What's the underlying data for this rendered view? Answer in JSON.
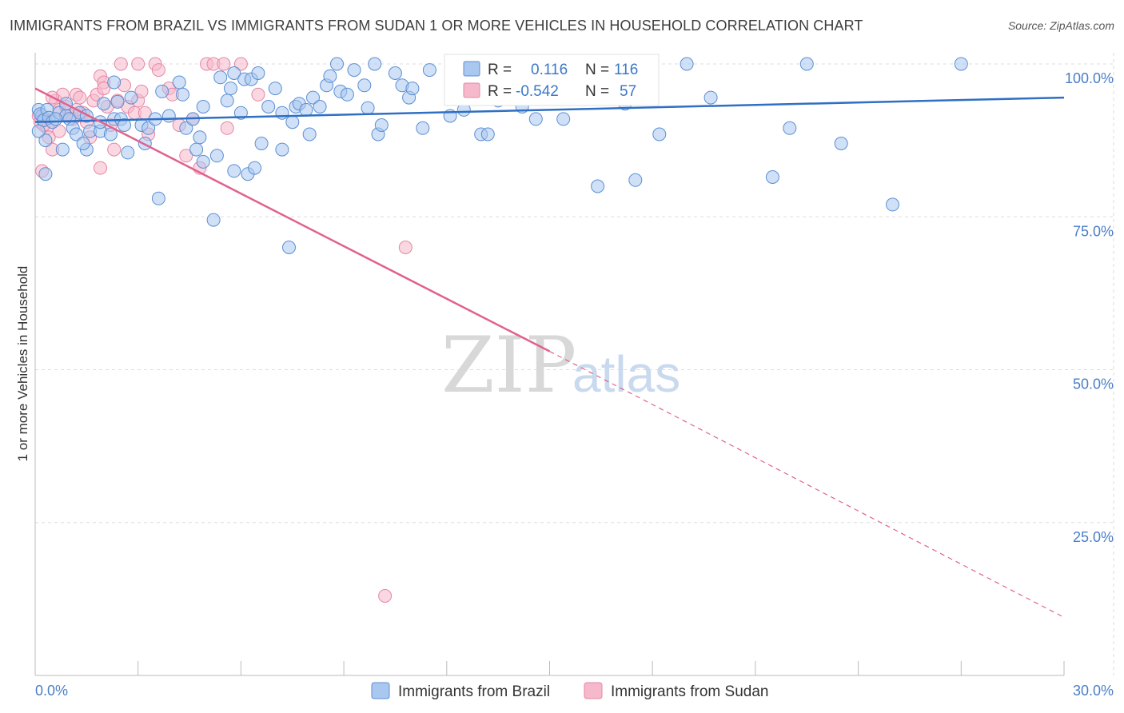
{
  "header": {
    "title": "IMMIGRANTS FROM BRAZIL VS IMMIGRANTS FROM SUDAN 1 OR MORE VEHICLES IN HOUSEHOLD CORRELATION CHART",
    "source": "Source: ZipAtlas.com"
  },
  "watermark": {
    "zip": "ZIP",
    "atlas": "atlas"
  },
  "legend": {
    "brazil": {
      "r_label": "R =",
      "r_value": "0.116",
      "n_label": "N =",
      "n_value": "116"
    },
    "sudan": {
      "r_label": "R =",
      "r_value": "-0.542",
      "n_label": "N =",
      "n_value": "57"
    }
  },
  "bottom_legend": {
    "brazil": "Immigrants from Brazil",
    "sudan": "Immigrants from Sudan"
  },
  "colors": {
    "brazil_fill": "#a9c7ef",
    "brazil_stroke": "#5b8fd4",
    "brazil_line": "#2f6fc4",
    "sudan_fill": "#f6b8cb",
    "sudan_stroke": "#e687a6",
    "sudan_line": "#e0628f",
    "grid": "#dddddd",
    "tick_text": "#4a7ec8"
  },
  "chart_data": {
    "type": "scatter",
    "title": "IMMIGRANTS FROM BRAZIL VS IMMIGRANTS FROM SUDAN 1 OR MORE VEHICLES IN HOUSEHOLD CORRELATION CHART",
    "xlabel": "",
    "ylabel": "1 or more Vehicles in Household",
    "xlim": [
      0,
      30
    ],
    "ylim": [
      0,
      105
    ],
    "x_tick_labels": [
      "0.0%",
      "30.0%"
    ],
    "y_ticks": [
      25,
      50,
      75,
      100
    ],
    "y_tick_labels": [
      "25.0%",
      "50.0%",
      "75.0%",
      "100.0%"
    ],
    "grid": true,
    "legend_position": "top-center",
    "series": [
      {
        "name": "Immigrants from Brazil",
        "points": [
          [
            0.1,
            92.5
          ],
          [
            0.2,
            91.5
          ],
          [
            0.15,
            91.8
          ],
          [
            0.25,
            90.8
          ],
          [
            0.3,
            87.5
          ],
          [
            0.35,
            92.5
          ],
          [
            0.4,
            91.2
          ],
          [
            0.5,
            90.5
          ],
          [
            0.7,
            92.0
          ],
          [
            0.9,
            91.5
          ],
          [
            0.8,
            86.0
          ],
          [
            1.0,
            91.0
          ],
          [
            1.1,
            89.5
          ],
          [
            1.3,
            92.0
          ],
          [
            1.2,
            88.5
          ],
          [
            1.5,
            91.5
          ],
          [
            1.6,
            89.0
          ],
          [
            1.5,
            86.0
          ],
          [
            1.9,
            89.0
          ],
          [
            2.0,
            93.5
          ],
          [
            2.2,
            88.5
          ],
          [
            2.3,
            91.0
          ],
          [
            2.5,
            91.0
          ],
          [
            2.6,
            90.0
          ],
          [
            2.7,
            85.5
          ],
          [
            2.8,
            94.5
          ],
          [
            3.1,
            90.0
          ],
          [
            3.3,
            89.5
          ],
          [
            3.5,
            91.0
          ],
          [
            3.6,
            78.0
          ],
          [
            3.7,
            95.5
          ],
          [
            4.2,
            97.0
          ],
          [
            4.3,
            95.0
          ],
          [
            4.4,
            89.5
          ],
          [
            4.6,
            91.0
          ],
          [
            4.8,
            88.0
          ],
          [
            4.9,
            93.0
          ],
          [
            4.9,
            84.0
          ],
          [
            5.2,
            74.5
          ],
          [
            5.3,
            85.0
          ],
          [
            5.4,
            97.8
          ],
          [
            5.6,
            94.0
          ],
          [
            5.7,
            96.0
          ],
          [
            5.8,
            98.5
          ],
          [
            6.1,
            97.5
          ],
          [
            6.2,
            82.0
          ],
          [
            6.3,
            97.5
          ],
          [
            6.4,
            83.0
          ],
          [
            6.5,
            98.5
          ],
          [
            6.6,
            87.0
          ],
          [
            6.8,
            93.0
          ],
          [
            7.0,
            96.0
          ],
          [
            7.2,
            92.0
          ],
          [
            7.2,
            86.0
          ],
          [
            7.5,
            90.5
          ],
          [
            7.6,
            93.0
          ],
          [
            7.7,
            93.5
          ],
          [
            7.9,
            92.5
          ],
          [
            8.0,
            88.5
          ],
          [
            8.1,
            94.5
          ],
          [
            8.3,
            93.0
          ],
          [
            8.5,
            96.5
          ],
          [
            8.6,
            98.0
          ],
          [
            8.8,
            100.0
          ],
          [
            8.9,
            95.5
          ],
          [
            9.1,
            95.0
          ],
          [
            9.3,
            99.0
          ],
          [
            9.6,
            96.5
          ],
          [
            9.9,
            100.0
          ],
          [
            10.0,
            88.5
          ],
          [
            10.1,
            90.0
          ],
          [
            10.5,
            98.5
          ],
          [
            10.7,
            96.5
          ],
          [
            10.9,
            94.5
          ],
          [
            11.3,
            89.5
          ],
          [
            11.5,
            99.0
          ],
          [
            12.1,
            91.5
          ],
          [
            13.0,
            88.5
          ],
          [
            13.2,
            88.5
          ],
          [
            13.5,
            94.0
          ],
          [
            13.9,
            100.0
          ],
          [
            14.2,
            93.0
          ],
          [
            14.6,
            91.0
          ],
          [
            15.3,
            98.0
          ],
          [
            15.4,
            91.0
          ],
          [
            15.9,
            100.0
          ],
          [
            16.2,
            100.0
          ],
          [
            16.4,
            80.0
          ],
          [
            17.5,
            81.0
          ],
          [
            17.2,
            93.5
          ],
          [
            18.2,
            88.5
          ],
          [
            19.0,
            100.0
          ],
          [
            19.7,
            94.5
          ],
          [
            21.5,
            81.5
          ],
          [
            22.0,
            89.5
          ],
          [
            22.5,
            100.0
          ],
          [
            23.5,
            87.0
          ],
          [
            25.0,
            77.0
          ],
          [
            27.0,
            100.0
          ],
          [
            7.4,
            70.0
          ],
          [
            4.7,
            86.0
          ],
          [
            5.8,
            82.5
          ],
          [
            2.3,
            97.0
          ],
          [
            1.9,
            90.5
          ],
          [
            0.9,
            93.5
          ],
          [
            12.5,
            92.5
          ],
          [
            3.9,
            91.5
          ],
          [
            0.6,
            91.0
          ],
          [
            1.4,
            87.0
          ],
          [
            2.4,
            93.8
          ],
          [
            0.3,
            82.0
          ],
          [
            6.0,
            92.0
          ],
          [
            9.7,
            92.8
          ],
          [
            11.0,
            96.0
          ],
          [
            3.2,
            87.0
          ],
          [
            0.1,
            89.0
          ]
        ]
      },
      {
        "name": "Immigrants from Sudan",
        "points": [
          [
            0.1,
            91.5
          ],
          [
            0.15,
            90.5
          ],
          [
            0.2,
            82.5
          ],
          [
            0.3,
            91.0
          ],
          [
            0.35,
            89.5
          ],
          [
            0.4,
            88.0
          ],
          [
            0.5,
            86.0
          ],
          [
            0.6,
            94.0
          ],
          [
            0.7,
            92.5
          ],
          [
            0.8,
            95.0
          ],
          [
            0.9,
            93.0
          ],
          [
            1.0,
            91.5
          ],
          [
            1.1,
            91.0
          ],
          [
            1.2,
            95.0
          ],
          [
            1.3,
            94.5
          ],
          [
            1.4,
            92.0
          ],
          [
            1.5,
            90.5
          ],
          [
            1.6,
            88.0
          ],
          [
            1.7,
            94.0
          ],
          [
            1.8,
            95.0
          ],
          [
            1.9,
            98.0
          ],
          [
            2.0,
            97.0
          ],
          [
            2.1,
            93.0
          ],
          [
            2.2,
            90.0
          ],
          [
            2.3,
            86.0
          ],
          [
            2.4,
            94.0
          ],
          [
            2.5,
            100.0
          ],
          [
            2.6,
            96.5
          ],
          [
            2.7,
            93.0
          ],
          [
            2.9,
            92.0
          ],
          [
            3.0,
            94.0
          ],
          [
            3.2,
            92.0
          ],
          [
            3.3,
            88.5
          ],
          [
            3.5,
            100.0
          ],
          [
            3.6,
            99.0
          ],
          [
            3.9,
            96.0
          ],
          [
            4.0,
            95.0
          ],
          [
            4.2,
            90.0
          ],
          [
            4.4,
            85.0
          ],
          [
            4.6,
            91.0
          ],
          [
            5.0,
            100.0
          ],
          [
            5.2,
            100.0
          ],
          [
            5.5,
            100.0
          ],
          [
            5.6,
            89.5
          ],
          [
            6.0,
            100.0
          ],
          [
            6.5,
            95.0
          ],
          [
            3.0,
            100.0
          ],
          [
            4.8,
            83.0
          ],
          [
            1.9,
            83.0
          ],
          [
            10.8,
            70.0
          ],
          [
            10.2,
            13.0
          ],
          [
            0.5,
            94.5
          ],
          [
            0.25,
            90.0
          ],
          [
            2.0,
            96.0
          ],
          [
            1.2,
            92.5
          ],
          [
            0.7,
            89.0
          ],
          [
            3.1,
            95.5
          ]
        ]
      }
    ],
    "trendlines": [
      {
        "series": "Immigrants from Brazil",
        "x": [
          0,
          30
        ],
        "y": [
          90.5,
          94.5
        ]
      },
      {
        "series": "Immigrants from Sudan",
        "x": [
          0,
          15
        ],
        "y": [
          96.0,
          53.0
        ],
        "dashed_to": [
          30,
          9.5
        ]
      }
    ]
  }
}
